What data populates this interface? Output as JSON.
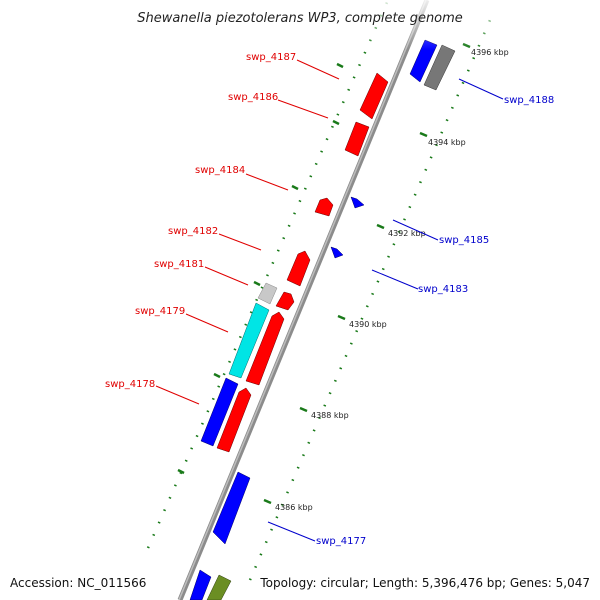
{
  "title": "Shewanella piezotolerans WP3, complete genome",
  "accession": "Accession: NC_011566",
  "topology": "Topology: circular; Length: 5,396,476 bp; Genes: 5,047",
  "colors": {
    "forward": "#ff0000",
    "reverse": "#0000ff",
    "backbone": "#8c8c8c",
    "tick": "#1a7a1a",
    "other_gray": "#777777",
    "cyan": "#00e5e5",
    "olive": "#6b8e23",
    "light_gray": "#c8c8c8"
  },
  "ticks": [
    {
      "label": "4396 kbp"
    },
    {
      "label": "4394 kbp"
    },
    {
      "label": "4392 kbp"
    },
    {
      "label": "4390 kbp"
    },
    {
      "label": "4388 kbp"
    },
    {
      "label": "4386 kbp"
    }
  ],
  "forward_labels": [
    {
      "name": "swp_4187"
    },
    {
      "name": "swp_4186"
    },
    {
      "name": "swp_4184"
    },
    {
      "name": "swp_4182"
    },
    {
      "name": "swp_4181"
    },
    {
      "name": "swp_4179"
    },
    {
      "name": "swp_4178"
    }
  ],
  "reverse_labels": [
    {
      "name": "swp_4188"
    },
    {
      "name": "swp_4185"
    },
    {
      "name": "swp_4183"
    },
    {
      "name": "swp_4177"
    }
  ]
}
